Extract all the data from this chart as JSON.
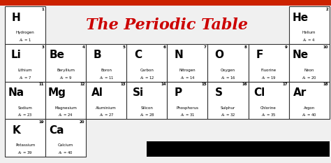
{
  "title": "The Periodic Table",
  "title_color": "#cc0000",
  "bg_color": "#f0f0f0",
  "cell_bg": "#ffffff",
  "cell_border": "#333333",
  "top_bar_color": "#cc2200",
  "black_box_color": "#000000",
  "elements": [
    {
      "symbol": "H",
      "name": "Hydrogen",
      "ar": 1,
      "num": 1,
      "row": 0,
      "col": 0
    },
    {
      "symbol": "He",
      "name": "Helium",
      "ar": 4,
      "num": 2,
      "row": 0,
      "col": 7
    },
    {
      "symbol": "Li",
      "name": "Lithium",
      "ar": 7,
      "num": 3,
      "row": 1,
      "col": 0
    },
    {
      "symbol": "Be",
      "name": "Beryllium",
      "ar": 9,
      "num": 4,
      "row": 1,
      "col": 1
    },
    {
      "symbol": "B",
      "name": "Boron",
      "ar": 11,
      "num": 5,
      "row": 1,
      "col": 2
    },
    {
      "symbol": "C",
      "name": "Carbon",
      "ar": 12,
      "num": 6,
      "row": 1,
      "col": 3
    },
    {
      "symbol": "N",
      "name": "Nitrogen",
      "ar": 14,
      "num": 7,
      "row": 1,
      "col": 4
    },
    {
      "symbol": "O",
      "name": "Oxygen",
      "ar": 16,
      "num": 8,
      "row": 1,
      "col": 5
    },
    {
      "symbol": "F",
      "name": "Fluorine",
      "ar": 19,
      "num": 9,
      "row": 1,
      "col": 6
    },
    {
      "symbol": "Ne",
      "name": "Neon",
      "ar": 20,
      "num": 10,
      "row": 1,
      "col": 7
    },
    {
      "symbol": "Na",
      "name": "Sodium",
      "ar": 23,
      "num": 11,
      "row": 2,
      "col": 0
    },
    {
      "symbol": "Mg",
      "name": "Magnesium",
      "ar": 24,
      "num": 12,
      "row": 2,
      "col": 1
    },
    {
      "symbol": "Al",
      "name": "Aluminium",
      "ar": 27,
      "num": 13,
      "row": 2,
      "col": 2
    },
    {
      "symbol": "Si",
      "name": "Silicon",
      "ar": 28,
      "num": 14,
      "row": 2,
      "col": 3
    },
    {
      "symbol": "P",
      "name": "Phosphorus",
      "ar": 31,
      "num": 15,
      "row": 2,
      "col": 4
    },
    {
      "symbol": "S",
      "name": "Sulphur",
      "ar": 32,
      "num": 16,
      "row": 2,
      "col": 5
    },
    {
      "symbol": "Cl",
      "name": "Chlorine",
      "ar": 35,
      "num": 17,
      "row": 2,
      "col": 6
    },
    {
      "symbol": "Ar",
      "name": "Argon",
      "ar": 40,
      "num": 18,
      "row": 2,
      "col": 7
    },
    {
      "symbol": "K",
      "name": "Potassium",
      "ar": 39,
      "num": 19,
      "row": 3,
      "col": 0
    },
    {
      "symbol": "Ca",
      "name": "Calcium",
      "ar": 40,
      "num": 20,
      "row": 3,
      "col": 1
    }
  ],
  "ncols": 8,
  "nrows": 4,
  "symbol_fontsize": 11,
  "name_fontsize": 4.0,
  "ar_fontsize": 3.8,
  "num_fontsize": 4.0,
  "title_fontsize": 16
}
